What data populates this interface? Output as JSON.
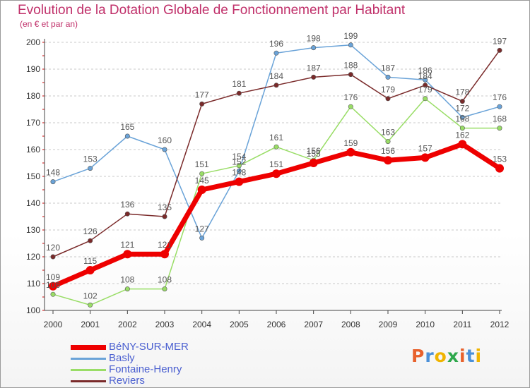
{
  "header": {
    "title": "Evolution de la Dotation Globale de Fonctionnement par Habitant",
    "subtitle": "(en € et par an)"
  },
  "logo": {
    "text": "Proxiti",
    "colors": [
      "#e8612c",
      "#4a90d9",
      "#f0b400",
      "#2ea84c",
      "#e8612c",
      "#4a90d9",
      "#f0b400"
    ]
  },
  "chart_data": {
    "type": "line",
    "title": "Evolution de la Dotation Globale de Fonctionnement par Habitant",
    "subtitle": "(en € et par an)",
    "xlabel": "",
    "ylabel": "",
    "ylim": [
      100,
      200
    ],
    "yticks": [
      100,
      110,
      120,
      130,
      140,
      150,
      160,
      170,
      180,
      190,
      200
    ],
    "grid": "horizontal dashed",
    "legend_position": "bottom-left",
    "x": [
      "2000",
      "2001",
      "2002",
      "2003",
      "2004",
      "2005",
      "2006",
      "2007",
      "2008",
      "2009",
      "2010",
      "2011",
      "2012"
    ],
    "series": [
      {
        "name": "BéNY-SUR-MER",
        "color": "#ee0000",
        "values": [
          109,
          115,
          121,
          121,
          145,
          148,
          151,
          155,
          159,
          156,
          157,
          162,
          153
        ]
      },
      {
        "name": "Basly",
        "color": "#6aa3d8",
        "values": [
          148,
          153,
          165,
          160,
          127,
          152,
          196,
          198,
          199,
          187,
          186,
          172,
          176
        ]
      },
      {
        "name": "Fontaine-Henry",
        "color": "#99dd66",
        "values": [
          106,
          102,
          108,
          108,
          151,
          154,
          161,
          156,
          176,
          163,
          179,
          168,
          168
        ]
      },
      {
        "name": "Reviers",
        "color": "#7a2a2a",
        "values": [
          120,
          126,
          136,
          135,
          177,
          181,
          184,
          187,
          188,
          179,
          184,
          178,
          197
        ]
      }
    ]
  }
}
